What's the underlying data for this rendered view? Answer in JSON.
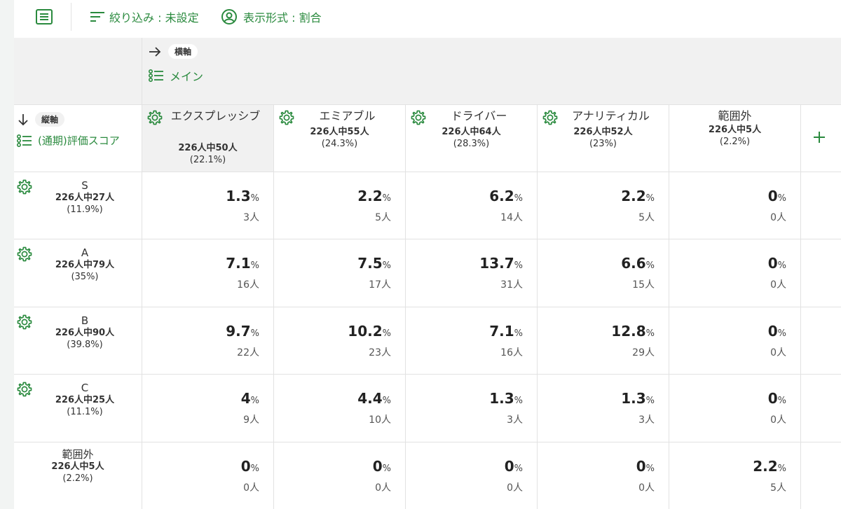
{
  "toolbar": {
    "filter_label": "絞り込み : 未設定",
    "mode_label": "表示形式 : 割合"
  },
  "axes": {
    "horizontal_tag": "横軸",
    "horizontal_value": "メイン",
    "vertical_tag": "縦軸",
    "vertical_value": "(通期)評価スコア"
  },
  "columns": [
    {
      "label": "エクスプレッシブ",
      "count": "226人中50人",
      "pct": "(22.1%)"
    },
    {
      "label": "エミアブル",
      "count": "226人中55人",
      "pct": "(24.3%)"
    },
    {
      "label": "ドライバー",
      "count": "226人中64人",
      "pct": "(28.3%)"
    },
    {
      "label": "アナリティカル",
      "count": "226人中52人",
      "pct": "(23%)"
    },
    {
      "label": "範囲外",
      "count": "226人中5人",
      "pct": "(2.2%)"
    }
  ],
  "rows": [
    {
      "label": "S",
      "count": "226人中27人",
      "pct": "(11.9%)",
      "cells": [
        {
          "v": "1.3",
          "n": "3人"
        },
        {
          "v": "2.2",
          "n": "5人"
        },
        {
          "v": "6.2",
          "n": "14人"
        },
        {
          "v": "2.2",
          "n": "5人"
        },
        {
          "v": "0",
          "n": "0人"
        }
      ]
    },
    {
      "label": "A",
      "count": "226人中79人",
      "pct": "(35%)",
      "cells": [
        {
          "v": "7.1",
          "n": "16人"
        },
        {
          "v": "7.5",
          "n": "17人"
        },
        {
          "v": "13.7",
          "n": "31人"
        },
        {
          "v": "6.6",
          "n": "15人"
        },
        {
          "v": "0",
          "n": "0人"
        }
      ]
    },
    {
      "label": "B",
      "count": "226人中90人",
      "pct": "(39.8%)",
      "cells": [
        {
          "v": "9.7",
          "n": "22人"
        },
        {
          "v": "10.2",
          "n": "23人"
        },
        {
          "v": "7.1",
          "n": "16人"
        },
        {
          "v": "12.8",
          "n": "29人"
        },
        {
          "v": "0",
          "n": "0人"
        }
      ]
    },
    {
      "label": "C",
      "count": "226人中25人",
      "pct": "(11.1%)",
      "cells": [
        {
          "v": "4",
          "n": "9人"
        },
        {
          "v": "4.4",
          "n": "10人"
        },
        {
          "v": "1.3",
          "n": "3人"
        },
        {
          "v": "1.3",
          "n": "3人"
        },
        {
          "v": "0",
          "n": "0人"
        }
      ]
    },
    {
      "label": "範囲外",
      "count": "226人中5人",
      "pct": "(2.2%)",
      "cells": [
        {
          "v": "0",
          "n": "0人"
        },
        {
          "v": "0",
          "n": "0人"
        },
        {
          "v": "0",
          "n": "0人"
        },
        {
          "v": "0",
          "n": "0人"
        },
        {
          "v": "2.2",
          "n": "5人"
        }
      ]
    }
  ],
  "percent_unit": "%",
  "colors": {
    "accent": "#2a8a3e",
    "header_bg": "#f1f1f1"
  },
  "icons": {
    "doc": "document-list-icon",
    "filter": "filter-lines-icon",
    "mode": "user-circle-icon",
    "gear": "gear-icon",
    "list": "list-icon",
    "add": "plus-icon",
    "arrow_right": "arrow-right-icon",
    "arrow_down": "arrow-down-icon"
  }
}
